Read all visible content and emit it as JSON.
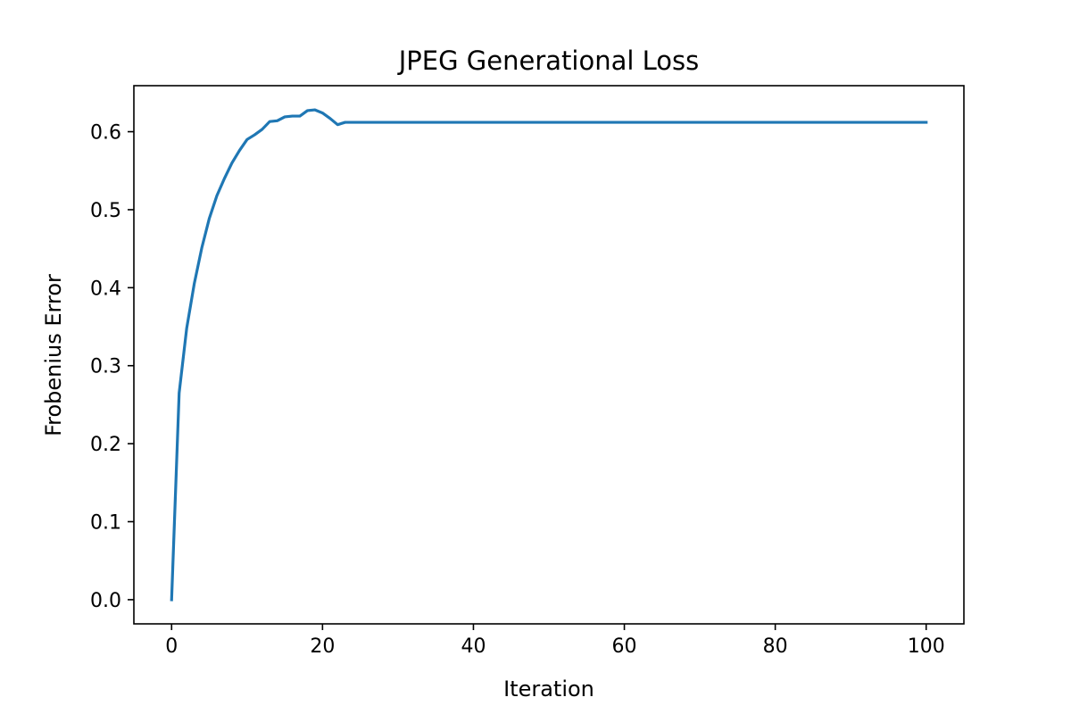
{
  "chart_data": {
    "type": "line",
    "title": "JPEG Generational Loss",
    "xlabel": "Iteration",
    "ylabel": "Frobenius Error",
    "xlim": [
      -5,
      105
    ],
    "ylim": [
      -0.031,
      0.659
    ],
    "xticks": [
      0,
      20,
      40,
      60,
      80,
      100
    ],
    "xtick_labels": [
      "0",
      "20",
      "40",
      "60",
      "80",
      "100"
    ],
    "yticks": [
      0.0,
      0.1,
      0.2,
      0.3,
      0.4,
      0.5,
      0.6
    ],
    "ytick_labels": [
      "0.0",
      "0.1",
      "0.2",
      "0.3",
      "0.4",
      "0.5",
      "0.6"
    ],
    "grid": false,
    "line_color": "#1f77b4",
    "series": [
      {
        "x": [
          0,
          1,
          2,
          3,
          4,
          5,
          6,
          7,
          8,
          9,
          10,
          11,
          12,
          13,
          14,
          15,
          16,
          17,
          18,
          19,
          20,
          21,
          22,
          23,
          24,
          25,
          30,
          40,
          50,
          60,
          70,
          80,
          90,
          100
        ],
        "values": [
          0.0,
          0.265,
          0.348,
          0.405,
          0.451,
          0.489,
          0.518,
          0.54,
          0.56,
          0.576,
          0.59,
          0.596,
          0.603,
          0.613,
          0.614,
          0.619,
          0.62,
          0.62,
          0.627,
          0.628,
          0.624,
          0.617,
          0.609,
          0.612,
          0.612,
          0.612,
          0.612,
          0.612,
          0.612,
          0.612,
          0.612,
          0.612,
          0.612,
          0.612
        ]
      }
    ]
  }
}
